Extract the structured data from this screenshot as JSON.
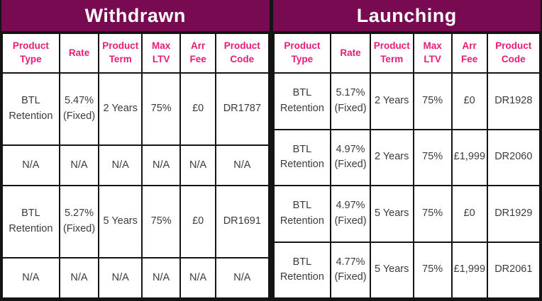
{
  "colors": {
    "band_bg": "#770a50",
    "band_text": "#ffffff",
    "column_header_text": "#eb1a78",
    "cell_text": "#3b3b3b",
    "grid_border": "#141414",
    "background": "#ffffff"
  },
  "sections": [
    {
      "title": "Withdrawn",
      "columns": [
        "Product\nType",
        "Rate",
        "Product\nTerm",
        "Max\nLTV",
        "Arr\nFee",
        "Product\nCode"
      ],
      "rows": [
        [
          "BTL\nRetention",
          "5.47%\n(Fixed)",
          "2 Years",
          "75%",
          "£0",
          "DR1787"
        ],
        [
          "N/A",
          "N/A",
          "N/A",
          "N/A",
          "N/A",
          "N/A"
        ],
        [
          "BTL\nRetention",
          "5.27%\n(Fixed)",
          "5 Years",
          "75%",
          "£0",
          "DR1691"
        ],
        [
          "N/A",
          "N/A",
          "N/A",
          "N/A",
          "N/A",
          "N/A"
        ]
      ]
    },
    {
      "title": "Launching",
      "columns": [
        "Product\nType",
        "Rate",
        "Product\nTerm",
        "Max\nLTV",
        "Arr\nFee",
        "Product\nCode"
      ],
      "rows": [
        [
          "BTL\nRetention",
          "5.17%\n(Fixed)",
          "2 Years",
          "75%",
          "£0",
          "DR1928"
        ],
        [
          "BTL\nRetention",
          "4.97%\n(Fixed)",
          "2 Years",
          "75%",
          "£1,999",
          "DR2060"
        ],
        [
          "BTL\nRetention",
          "4.97%\n(Fixed)",
          "5 Years",
          "75%",
          "£0",
          "DR1929"
        ],
        [
          "BTL\nRetention",
          "4.77%\n(Fixed)",
          "5 Years",
          "75%",
          "£1,999",
          "DR2061"
        ]
      ]
    }
  ],
  "chart_data": [
    {
      "type": "table",
      "title": "Withdrawn",
      "columns": [
        "Product Type",
        "Rate",
        "Product Term",
        "Max LTV",
        "Arr Fee",
        "Product Code"
      ],
      "rows": [
        [
          "BTL Retention",
          "5.47% (Fixed)",
          "2 Years",
          "75%",
          "£0",
          "DR1787"
        ],
        [
          "N/A",
          "N/A",
          "N/A",
          "N/A",
          "N/A",
          "N/A"
        ],
        [
          "BTL Retention",
          "5.27% (Fixed)",
          "5 Years",
          "75%",
          "£0",
          "DR1691"
        ],
        [
          "N/A",
          "N/A",
          "N/A",
          "N/A",
          "N/A",
          "N/A"
        ]
      ]
    },
    {
      "type": "table",
      "title": "Launching",
      "columns": [
        "Product Type",
        "Rate",
        "Product Term",
        "Max LTV",
        "Arr Fee",
        "Product Code"
      ],
      "rows": [
        [
          "BTL Retention",
          "5.17% (Fixed)",
          "2 Years",
          "75%",
          "£0",
          "DR1928"
        ],
        [
          "BTL Retention",
          "4.97% (Fixed)",
          "2 Years",
          "75%",
          "£1,999",
          "DR2060"
        ],
        [
          "BTL Retention",
          "4.97% (Fixed)",
          "5 Years",
          "75%",
          "£0",
          "DR1929"
        ],
        [
          "BTL Retention",
          "4.77% (Fixed)",
          "5 Years",
          "75%",
          "£1,999",
          "DR2061"
        ]
      ]
    }
  ]
}
